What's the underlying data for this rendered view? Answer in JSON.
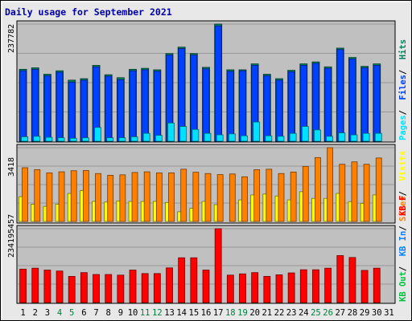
{
  "chart_data": {
    "type": "bar",
    "title": "Daily usage for September 2021",
    "categories": [
      "1",
      "2",
      "3",
      "4",
      "5",
      "6",
      "7",
      "8",
      "9",
      "10",
      "11",
      "12",
      "13",
      "14",
      "15",
      "16",
      "17",
      "18",
      "19",
      "20",
      "21",
      "22",
      "23",
      "24",
      "25",
      "26",
      "27",
      "28",
      "29",
      "30",
      "31"
    ],
    "weekend_days": [
      "4",
      "5",
      "11",
      "12",
      "18",
      "19",
      "25",
      "26"
    ],
    "panels": [
      {
        "key": "pages_files_hits",
        "ymax_label": "237782",
        "ymax": 237782,
        "legend": [
          {
            "label": "Hits",
            "color": "#00805c"
          },
          {
            "label": "Files",
            "color": "#0040ff"
          },
          {
            "label": "Pages",
            "color": "#00e0ff"
          }
        ],
        "series": [
          {
            "name": "Hits",
            "color": "#00805c",
            "values": [
              146000,
              149000,
              136000,
              143000,
              124000,
              127000,
              154000,
              135000,
              129000,
              146000,
              148000,
              145000,
              178000,
              191000,
              178000,
              150000,
              237782,
              145000,
              145000,
              157000,
              136000,
              127000,
              144000,
              157000,
              161000,
              151000,
              189000,
              170000,
              152000,
              157000,
              0
            ]
          },
          {
            "name": "Files",
            "color": "#0040ff",
            "values": [
              143000,
              146000,
              133000,
              140000,
              120000,
              124000,
              151000,
              132000,
              125000,
              143000,
              145000,
              142000,
              175000,
              188000,
              175000,
              147000,
              234000,
              142000,
              143000,
              154000,
              133000,
              124000,
              141000,
              154000,
              158000,
              148000,
              186000,
              167000,
              149000,
              154000,
              0
            ]
          },
          {
            "name": "Pages",
            "color": "#00e0ff",
            "values": [
              9000,
              10000,
              8000,
              7000,
              6000,
              7000,
              28000,
              7000,
              7000,
              9000,
              16000,
              12000,
              37000,
              30000,
              24000,
              16000,
              13000,
              15000,
              11000,
              39000,
              11000,
              10000,
              16000,
              30000,
              23000,
              10000,
              17000,
              13000,
              16000,
              16000,
              0
            ]
          }
        ]
      },
      {
        "key": "visits_sites",
        "ymax_label": "3418",
        "ymax": 3418,
        "legend": [
          {
            "label": "Visits",
            "color": "#ffff00"
          },
          {
            "label": "Sites",
            "color": "#ff8000"
          }
        ],
        "series": [
          {
            "name": "Visits",
            "color": "#ffff00",
            "values": [
              1150,
              800,
              700,
              800,
              1300,
              1430,
              930,
              900,
              950,
              930,
              930,
              930,
              880,
              450,
              610,
              930,
              780,
              0,
              1000,
              1230,
              1270,
              1180,
              1000,
              1380,
              1070,
              1070,
              1300,
              920,
              840,
              1230,
              0
            ]
          },
          {
            "name": "Sites",
            "color": "#ff8000",
            "values": [
              2490,
              2400,
              2250,
              2300,
              2350,
              2360,
              2220,
              2140,
              2160,
              2270,
              2300,
              2250,
              2250,
              2420,
              2280,
              2220,
              2170,
              2200,
              2070,
              2400,
              2420,
              2220,
              2290,
              2550,
              2960,
              3418,
              2650,
              2760,
              2650,
              2940,
              0
            ]
          }
        ]
      },
      {
        "key": "kb",
        "ymax_label": "234195457",
        "ymax": 234195457,
        "legend": [
          {
            "label": "KB F",
            "color": "#ff0000"
          },
          {
            "label": "KB In",
            "color": "#0080ff"
          },
          {
            "label": "KB Out",
            "color": "#00c040"
          }
        ],
        "series": [
          {
            "name": "KB F",
            "color": "#ff0000",
            "values": [
              106000000,
              109000000,
              103000000,
              100000000,
              83000000,
              95000000,
              89000000,
              89000000,
              87000000,
              103000000,
              92000000,
              92000000,
              110000000,
              142000000,
              142000000,
              103000000,
              234195457,
              87000000,
              91000000,
              95000000,
              83000000,
              88000000,
              94000000,
              104000000,
              104000000,
              109000000,
              149000000,
              143000000,
              102000000,
              109000000,
              0
            ]
          }
        ]
      }
    ]
  }
}
